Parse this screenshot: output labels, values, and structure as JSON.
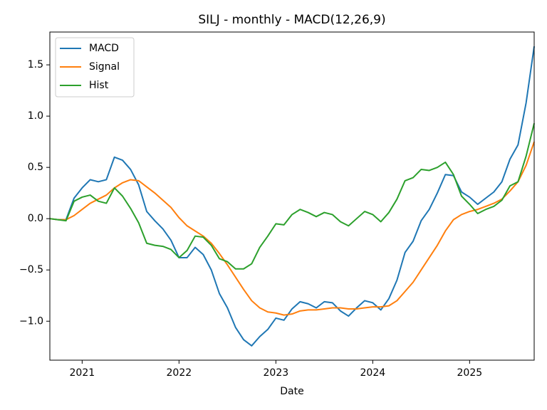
{
  "chart_data": {
    "type": "line",
    "title": "SILJ - monthly - MACD(12,26,9)",
    "x_label": "Date",
    "x": [
      "2020-09",
      "2020-10",
      "2020-11",
      "2020-12",
      "2021-01",
      "2021-02",
      "2021-03",
      "2021-04",
      "2021-05",
      "2021-06",
      "2021-07",
      "2021-08",
      "2021-09",
      "2021-10",
      "2021-11",
      "2021-12",
      "2022-01",
      "2022-02",
      "2022-03",
      "2022-04",
      "2022-05",
      "2022-06",
      "2022-07",
      "2022-08",
      "2022-09",
      "2022-10",
      "2022-11",
      "2022-12",
      "2023-01",
      "2023-02",
      "2023-03",
      "2023-04",
      "2023-05",
      "2023-06",
      "2023-07",
      "2023-08",
      "2023-09",
      "2023-10",
      "2023-11",
      "2023-12",
      "2024-01",
      "2024-02",
      "2024-03",
      "2024-04",
      "2024-05",
      "2024-06",
      "2024-07",
      "2024-08",
      "2024-09",
      "2024-10",
      "2024-11",
      "2024-12",
      "2025-01",
      "2025-02",
      "2025-03",
      "2025-04",
      "2025-05",
      "2025-06",
      "2025-07",
      "2025-08",
      "2025-09"
    ],
    "series": [
      {
        "name": "MACD",
        "color": "#1f77b4",
        "values": [
          0.0,
          -0.01,
          -0.01,
          0.2,
          0.3,
          0.38,
          0.36,
          0.38,
          0.6,
          0.57,
          0.48,
          0.33,
          0.07,
          -0.02,
          -0.1,
          -0.21,
          -0.38,
          -0.38,
          -0.28,
          -0.35,
          -0.5,
          -0.73,
          -0.87,
          -1.06,
          -1.18,
          -1.24,
          -1.15,
          -1.08,
          -0.97,
          -0.99,
          -0.88,
          -0.81,
          -0.83,
          -0.87,
          -0.81,
          -0.82,
          -0.9,
          -0.95,
          -0.87,
          -0.8,
          -0.82,
          -0.89,
          -0.78,
          -0.6,
          -0.33,
          -0.22,
          -0.02,
          0.09,
          0.25,
          0.43,
          0.42,
          0.26,
          0.21,
          0.14,
          0.2,
          0.26,
          0.36,
          0.58,
          0.72,
          1.13,
          1.68
        ]
      },
      {
        "name": "Signal",
        "color": "#ff7f0e",
        "values": [
          0.0,
          -0.01,
          -0.01,
          0.03,
          0.09,
          0.15,
          0.19,
          0.23,
          0.3,
          0.35,
          0.38,
          0.37,
          0.31,
          0.25,
          0.18,
          0.11,
          0.01,
          -0.07,
          -0.12,
          -0.17,
          -0.24,
          -0.34,
          -0.45,
          -0.57,
          -0.69,
          -0.8,
          -0.87,
          -0.91,
          -0.92,
          -0.94,
          -0.93,
          -0.9,
          -0.89,
          -0.89,
          -0.88,
          -0.87,
          -0.87,
          -0.88,
          -0.88,
          -0.87,
          -0.86,
          -0.86,
          -0.85,
          -0.8,
          -0.71,
          -0.62,
          -0.5,
          -0.38,
          -0.26,
          -0.12,
          -0.01,
          0.04,
          0.07,
          0.09,
          0.12,
          0.15,
          0.19,
          0.27,
          0.36,
          0.52,
          0.75
        ]
      },
      {
        "name": "Hist",
        "color": "#2ca02c",
        "values": [
          0.0,
          -0.01,
          -0.02,
          0.17,
          0.21,
          0.23,
          0.17,
          0.15,
          0.3,
          0.22,
          0.1,
          -0.04,
          -0.24,
          -0.26,
          -0.27,
          -0.3,
          -0.38,
          -0.31,
          -0.17,
          -0.18,
          -0.26,
          -0.39,
          -0.42,
          -0.49,
          -0.49,
          -0.44,
          -0.28,
          -0.17,
          -0.05,
          -0.06,
          0.04,
          0.09,
          0.06,
          0.02,
          0.06,
          0.04,
          -0.03,
          -0.07,
          0.0,
          0.07,
          0.04,
          -0.03,
          0.06,
          0.19,
          0.37,
          0.4,
          0.48,
          0.47,
          0.5,
          0.55,
          0.43,
          0.22,
          0.14,
          0.05,
          0.09,
          0.12,
          0.18,
          0.32,
          0.36,
          0.61,
          0.93
        ]
      }
    ],
    "xlim": [
      "2020-09",
      "2025-09"
    ],
    "xticks": [
      {
        "value": "2021-01",
        "label": "2021"
      },
      {
        "value": "2022-01",
        "label": "2022"
      },
      {
        "value": "2023-01",
        "label": "2023"
      },
      {
        "value": "2024-01",
        "label": "2024"
      },
      {
        "value": "2025-01",
        "label": "2025"
      }
    ],
    "ylim": [
      -1.38,
      1.82
    ],
    "yticks": [
      {
        "value": -1,
        "label": "−1.0"
      },
      {
        "value": -0.5,
        "label": "−0.5"
      },
      {
        "value": 0,
        "label": "0.0"
      },
      0.5,
      {
        "value": 1,
        "label": "1.0"
      },
      1.5
    ],
    "legend": "upper left",
    "grid": false
  }
}
